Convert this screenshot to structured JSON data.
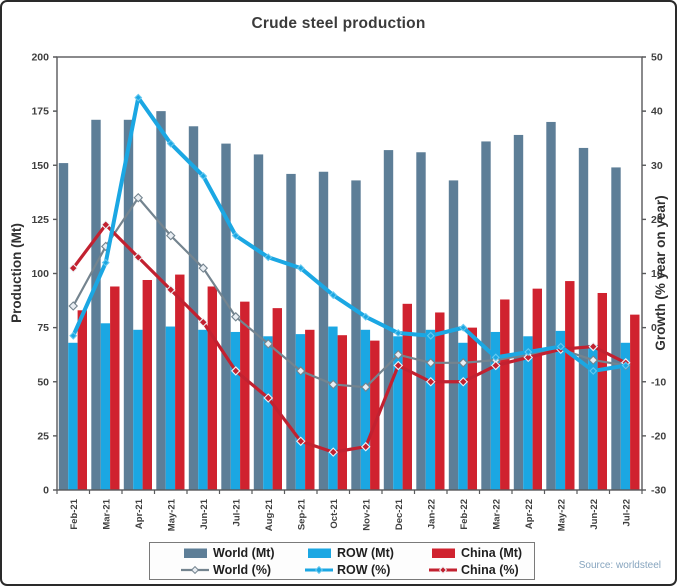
{
  "title": "Crude steel production",
  "source": "Source: worldsteel",
  "colors": {
    "world_bar": "#5d7e97",
    "row_bar": "#1ba7e3",
    "china_bar": "#d0222f",
    "world_line": "#74848f",
    "row_line": "#1ba7e3",
    "china_line": "#c22130",
    "axis": "#58595b",
    "tick_text": "#3f3f3f",
    "title_text": "#3b3b3b",
    "source_text": "#86a4be"
  },
  "chart_data": {
    "type": "combo-bar-line",
    "title": "Crude steel production",
    "grid": false,
    "legend_position": "bottom",
    "categories": [
      "Feb-21",
      "Mar-21",
      "Apr-21",
      "May-21",
      "Jun-21",
      "Jul-21",
      "Aug-21",
      "Sep-21",
      "Oct-21",
      "Nov-21",
      "Dec-21",
      "Jan-22",
      "Feb-22",
      "Mar-22",
      "Apr-22",
      "May-22",
      "Jun-22",
      "Jul-22"
    ],
    "left_axis": {
      "label": "Production (Mt)",
      "min": 0,
      "max": 200,
      "step": 25
    },
    "right_axis": {
      "label": "Growth (% year on year)",
      "min": -30,
      "max": 50,
      "step": 10
    },
    "bar_series": [
      {
        "name": "World (Mt)",
        "axis": "left",
        "color_key": "world_bar",
        "values": [
          151,
          171,
          171,
          175,
          168,
          160,
          155,
          146,
          147,
          143,
          157,
          156,
          143,
          161,
          164,
          170,
          158,
          149
        ]
      },
      {
        "name": "ROW (Mt)",
        "axis": "left",
        "color_key": "row_bar",
        "values": [
          68,
          77,
          74,
          75.5,
          74,
          73,
          71,
          72,
          75.5,
          74,
          71,
          74,
          68,
          73,
          71,
          73.5,
          67,
          68
        ]
      },
      {
        "name": "China (Mt)",
        "axis": "left",
        "color_key": "china_bar",
        "values": [
          83,
          94,
          97,
          99.5,
          94,
          87,
          84,
          74,
          71.5,
          69,
          86,
          82,
          75,
          88,
          93,
          96.5,
          91,
          81
        ]
      }
    ],
    "line_series": [
      {
        "name": "World (%)",
        "axis": "right",
        "color_key": "world_line",
        "width": 2.2,
        "marker": {
          "r": 4,
          "fill": "#e9eef3",
          "stroke": "#74848f"
        },
        "values": [
          4,
          15,
          24,
          17,
          11,
          2,
          -3,
          -8,
          -10.5,
          -11,
          -5,
          -6.5,
          -6.5,
          -6,
          -5,
          -4,
          -6,
          -7
        ]
      },
      {
        "name": "China (%)",
        "axis": "right",
        "color_key": "china_line",
        "width": 3.2,
        "marker": {
          "r": 4,
          "fill": "#c22130",
          "stroke": "#eef2f5"
        },
        "values": [
          11,
          19,
          13,
          7,
          1,
          -8,
          -13,
          -21,
          -23,
          -22,
          -7,
          -10,
          -10,
          -7,
          -5.5,
          -4,
          -3.5,
          -6.5
        ]
      },
      {
        "name": "ROW (%)",
        "axis": "right",
        "color_key": "row_line",
        "width": 4,
        "marker": {
          "r": 3.2,
          "fill": "#1ba7e3",
          "stroke": "#66c8ef"
        },
        "values": [
          -1.5,
          12,
          42.5,
          34,
          28,
          17,
          13,
          11,
          6,
          2,
          -1,
          -1.5,
          0,
          -5.5,
          -4.5,
          -3.5,
          -8,
          -7
        ]
      }
    ],
    "legend_order": [
      "World (Mt)",
      "ROW (Mt)",
      "China (Mt)",
      "World (%)",
      "ROW (%)",
      "China (%)"
    ]
  }
}
